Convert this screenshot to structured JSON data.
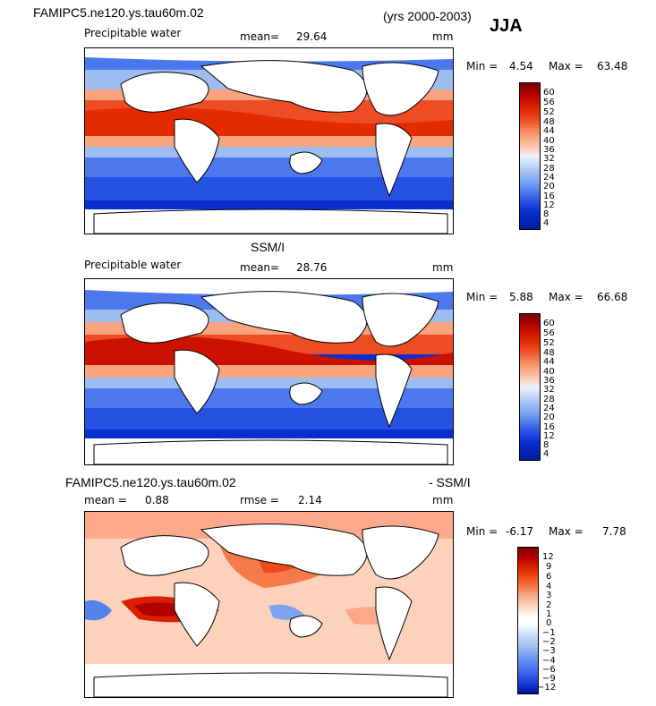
{
  "header": {
    "model_name": "FAMIPC5.ne120.ys.tau60m.02",
    "years": "(yrs 2000-2003)",
    "season": "JJA"
  },
  "panel1": {
    "variable": "Precipitable water",
    "mean_label": "mean=",
    "mean_value": "29.64",
    "units": "mm",
    "min_label": "Min =",
    "min_value": "4.54",
    "max_label": "Max =",
    "max_value": "63.48",
    "levels": [
      "60",
      "56",
      "52",
      "48",
      "44",
      "40",
      "36",
      "32",
      "28",
      "24",
      "20",
      "16",
      "12",
      "8",
      "4"
    ]
  },
  "panel2": {
    "title": "SSM/I",
    "variable": "Precipitable water",
    "mean_label": "mean=",
    "mean_value": "28.76",
    "units": "mm",
    "min_label": "Min =",
    "min_value": "5.88",
    "max_label": "Max =",
    "max_value": "66.68",
    "levels": [
      "60",
      "56",
      "52",
      "48",
      "44",
      "40",
      "36",
      "32",
      "28",
      "24",
      "20",
      "16",
      "12",
      "8",
      "4"
    ]
  },
  "panel3": {
    "title_left": "FAMIPC5.ne120.ys.tau60m.02",
    "title_right": "- SSM/I",
    "mean_label": "mean =",
    "mean_value": "0.88",
    "rmse_label": "rmse =",
    "rmse_value": "2.14",
    "units": "mm",
    "min_label": "Min =",
    "min_value": "-6.17",
    "max_label": "Max =",
    "max_value": "7.78",
    "levels": [
      "12",
      "9",
      "6",
      "4",
      "3",
      "2",
      "1",
      "0",
      "−1",
      "−2",
      "−3",
      "−4",
      "−6",
      "−9",
      "−12"
    ]
  },
  "colors": {
    "abs": [
      "#7a0000",
      "#a60000",
      "#cc1100",
      "#e22c00",
      "#ee4c22",
      "#f57a50",
      "#f9a47e",
      "#fccbb0",
      "#eef2fb",
      "#c7d8f5",
      "#9dbcef",
      "#729df0",
      "#4b78ec",
      "#2452e3",
      "#0a2fd0",
      "#001d9c"
    ],
    "diff": [
      "#850000",
      "#b00000",
      "#d82000",
      "#ee4a1a",
      "#f77a4a",
      "#fba98a",
      "#fdd2bd",
      "#ffffff",
      "#c8dcf6",
      "#a5c3f2",
      "#7ea4f0",
      "#5782ee",
      "#3560e6",
      "#1739cf",
      "#00129c"
    ]
  }
}
